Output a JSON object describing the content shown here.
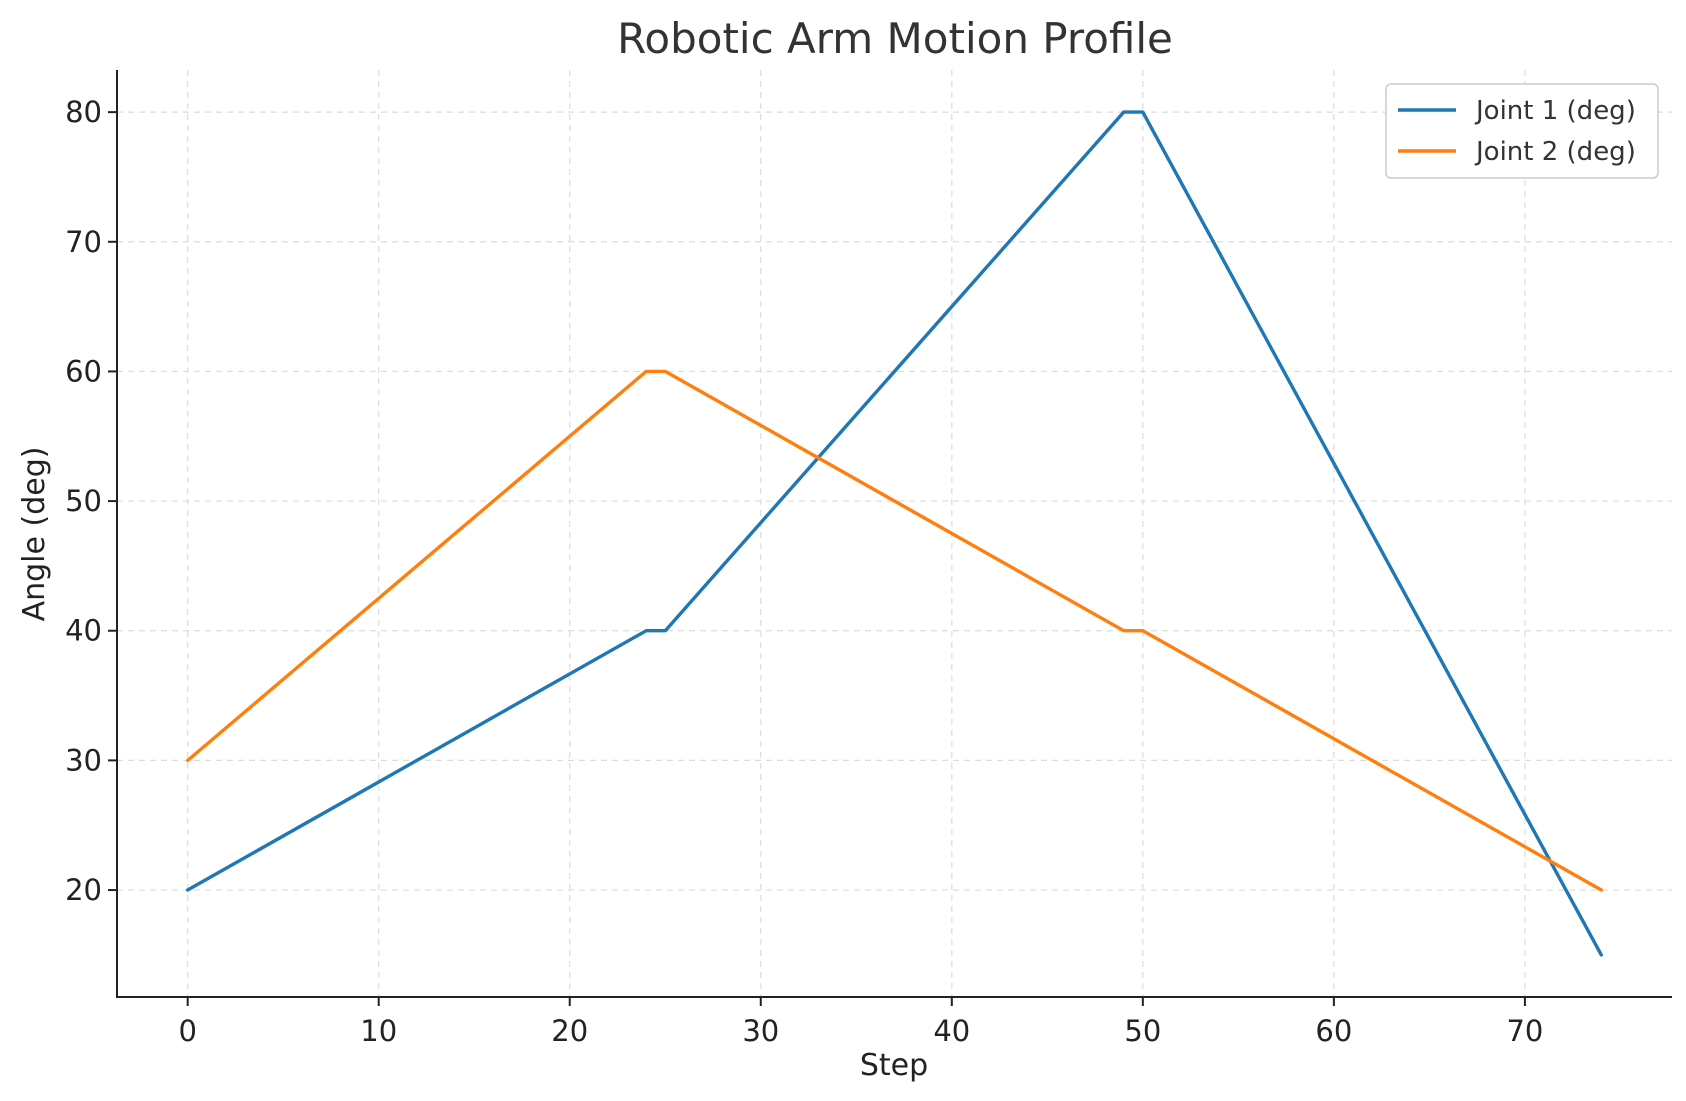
{
  "chart_data": {
    "type": "line",
    "title": "Robotic Arm Motion Profile",
    "xlabel": "Step",
    "ylabel": "Angle (deg)",
    "xlim": [
      -3.7,
      77.7
    ],
    "ylim": [
      11.75,
      83.25
    ],
    "xticks": [
      0,
      10,
      20,
      30,
      40,
      50,
      60,
      70
    ],
    "yticks": [
      20,
      30,
      40,
      50,
      60,
      70,
      80
    ],
    "grid": true,
    "legend_position": "top-right",
    "series": [
      {
        "name": "Joint 1 (deg)",
        "color": "#1f77b4",
        "x": [
          0,
          24,
          25,
          49,
          50,
          74
        ],
        "y": [
          20,
          40,
          40,
          80,
          80,
          15
        ]
      },
      {
        "name": "Joint 2 (deg)",
        "color": "#ff7f0e",
        "x": [
          0,
          24,
          25,
          49,
          50,
          74
        ],
        "y": [
          30,
          60,
          60,
          40,
          40,
          20
        ]
      }
    ]
  }
}
